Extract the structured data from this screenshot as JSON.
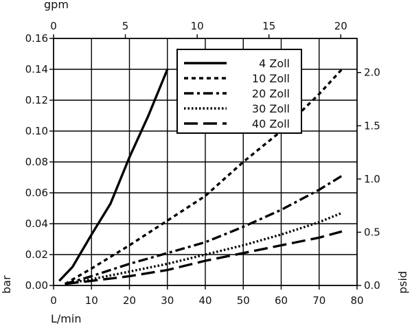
{
  "chart_data": {
    "type": "line",
    "xlabel": "L/min",
    "ylabel": "bar",
    "x2label": "gpm",
    "y2label": "psid",
    "xlim": [
      0,
      80
    ],
    "ylim": [
      0,
      0.16
    ],
    "x2lim": [
      0,
      21.134
    ],
    "y2lim": [
      0,
      2.3206
    ],
    "xticks": [
      "0",
      "10",
      "20",
      "30",
      "40",
      "50",
      "60",
      "70",
      "80"
    ],
    "yticks": [
      "0.00",
      "0.02",
      "0.04",
      "0.06",
      "0.08",
      "0.10",
      "0.12",
      "0.14",
      "0.16"
    ],
    "x2ticks": [
      "0",
      "5",
      "10",
      "15",
      "20"
    ],
    "y2ticks": [
      "0.0",
      "0.5",
      "1.0",
      "1.5",
      "2.0"
    ],
    "x2tick_values": [
      0,
      5,
      10,
      15,
      20
    ],
    "y2tick_values": [
      0,
      0.5,
      1.0,
      1.5,
      2.0
    ],
    "grid": true,
    "legend_position": "top-right",
    "series": [
      {
        "name": "4 Zoll",
        "dash": "solid",
        "points": [
          [
            1.5,
            0.003
          ],
          [
            5,
            0.012
          ],
          [
            10,
            0.033
          ],
          [
            15,
            0.053
          ],
          [
            20,
            0.083
          ],
          [
            25,
            0.11
          ],
          [
            30,
            0.14
          ]
        ]
      },
      {
        "name": "10 Zoll",
        "dash": "short-dash",
        "points": [
          [
            3,
            0.001
          ],
          [
            10,
            0.011
          ],
          [
            20,
            0.026
          ],
          [
            30,
            0.042
          ],
          [
            40,
            0.058
          ],
          [
            50,
            0.08
          ],
          [
            60,
            0.1
          ],
          [
            70,
            0.124
          ],
          [
            76,
            0.14
          ]
        ]
      },
      {
        "name": "20 Zoll",
        "dash": "dash-dot",
        "points": [
          [
            3,
            0.001
          ],
          [
            10,
            0.006
          ],
          [
            20,
            0.014
          ],
          [
            30,
            0.021
          ],
          [
            40,
            0.028
          ],
          [
            50,
            0.038
          ],
          [
            60,
            0.049
          ],
          [
            70,
            0.062
          ],
          [
            76,
            0.071
          ]
        ]
      },
      {
        "name": "30 Zoll",
        "dash": "dotted",
        "points": [
          [
            3,
            0.001
          ],
          [
            10,
            0.004
          ],
          [
            20,
            0.009
          ],
          [
            30,
            0.014
          ],
          [
            40,
            0.02
          ],
          [
            50,
            0.026
          ],
          [
            60,
            0.033
          ],
          [
            70,
            0.041
          ],
          [
            76,
            0.047
          ]
        ]
      },
      {
        "name": "40 Zoll",
        "dash": "long-dash",
        "points": [
          [
            3,
            0.001
          ],
          [
            10,
            0.003
          ],
          [
            20,
            0.006
          ],
          [
            30,
            0.01
          ],
          [
            40,
            0.016
          ],
          [
            50,
            0.021
          ],
          [
            60,
            0.026
          ],
          [
            70,
            0.031
          ],
          [
            76,
            0.035
          ]
        ]
      }
    ]
  }
}
